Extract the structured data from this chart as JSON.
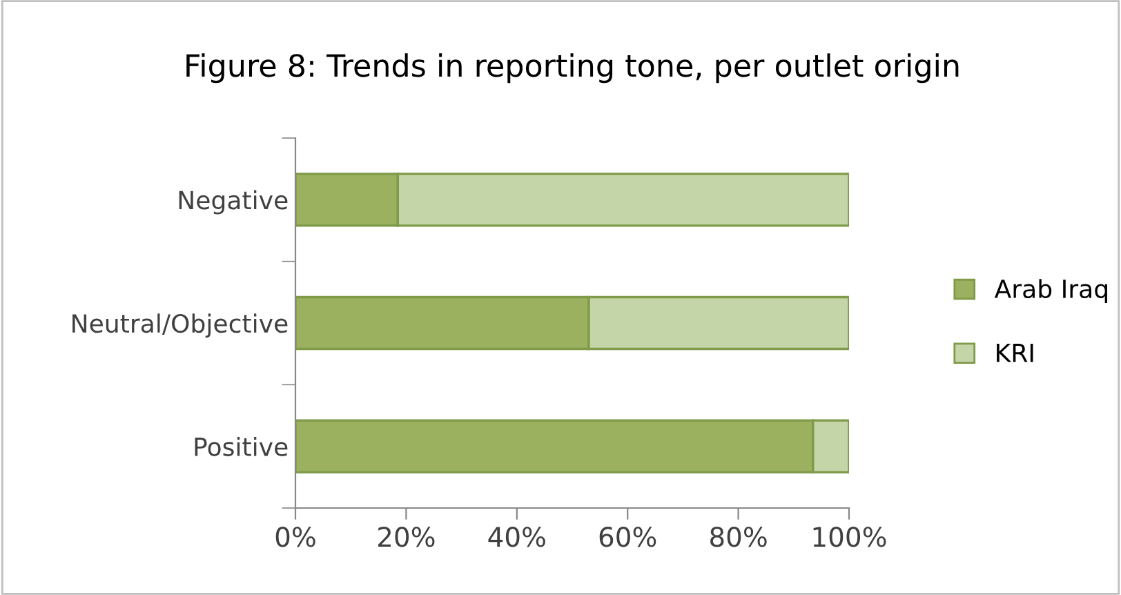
{
  "chart_data": {
    "type": "bar",
    "orientation": "horizontal",
    "stacked": true,
    "title": "Figure 8: Trends in reporting tone, per outlet origin",
    "categories": [
      "Negative",
      "Neutral/Objective",
      "Positive"
    ],
    "series": [
      {
        "name": "Arab Iraq",
        "color": "#9bb160",
        "values": [
          18.5,
          53,
          93.5
        ]
      },
      {
        "name": "KRI",
        "color": "#c4d5a8",
        "values": [
          81.5,
          47,
          6.5
        ]
      }
    ],
    "xlim": [
      0,
      100
    ],
    "xticks": [
      {
        "value": 0,
        "label": "0%"
      },
      {
        "value": 20,
        "label": "20%"
      },
      {
        "value": 40,
        "label": "40%"
      },
      {
        "value": 60,
        "label": "60%"
      },
      {
        "value": 80,
        "label": "80%"
      },
      {
        "value": 100,
        "label": "100%"
      }
    ],
    "grid": false,
    "legend": "right"
  }
}
